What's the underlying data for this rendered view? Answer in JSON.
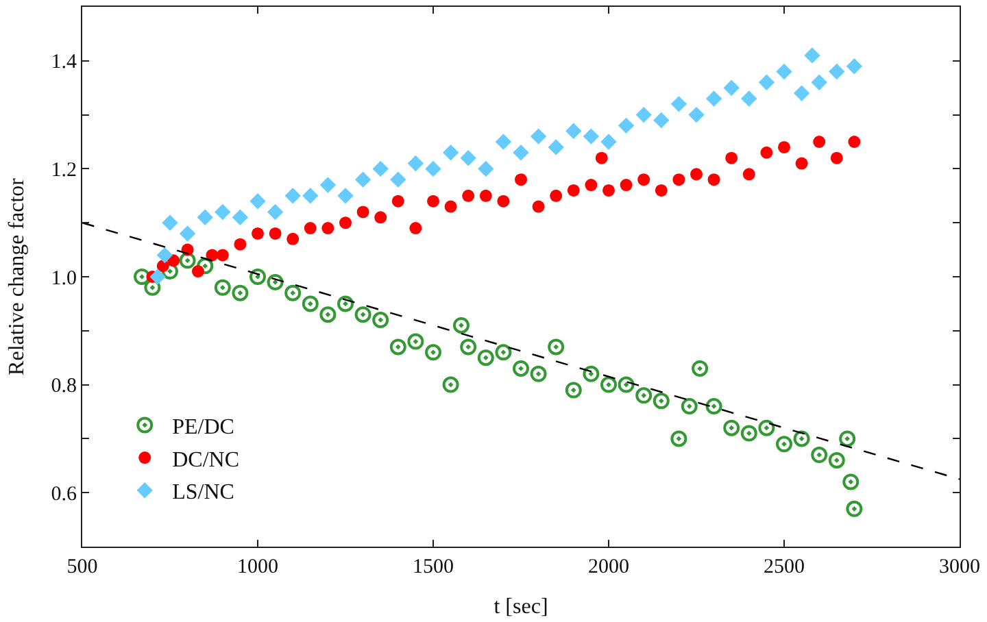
{
  "chart_data": {
    "type": "scatter",
    "xlabel": "t [sec]",
    "ylabel": "Relative change factor",
    "xlim": [
      500,
      3000
    ],
    "xticks": [
      500,
      1000,
      1500,
      2000,
      2500,
      3000
    ],
    "ylim": [
      0.5,
      1.5
    ],
    "yticks": [
      {
        "value": 0.5,
        "label": null
      },
      0.6,
      {
        "value": 0.7,
        "label": null
      },
      0.8,
      {
        "value": 0.9,
        "label": null
      },
      "1.0",
      {
        "value": 1.1,
        "label": null
      },
      1.2,
      {
        "value": 1.3,
        "label": null
      },
      1.4,
      {
        "value": 1.5,
        "label": null
      }
    ],
    "legend": "bottom left",
    "series": [
      {
        "name": "PE/DC",
        "color": "#339933",
        "marker": "circle",
        "x": [
          670,
          700,
          750,
          800,
          850,
          900,
          950,
          1000,
          1050,
          1100,
          1150,
          1200,
          1250,
          1300,
          1350,
          1400,
          1450,
          1500,
          1550,
          1580,
          1600,
          1650,
          1700,
          1750,
          1800,
          1850,
          1900,
          1950,
          2000,
          2050,
          2100,
          2150,
          2200,
          2230,
          2260,
          2300,
          2350,
          2400,
          2450,
          2500,
          2550,
          2600,
          2650,
          2680,
          2690,
          2700
        ],
        "values": [
          1.0,
          0.98,
          1.01,
          1.03,
          1.02,
          0.98,
          0.97,
          1.0,
          0.99,
          0.97,
          0.95,
          0.93,
          0.95,
          0.93,
          0.92,
          0.87,
          0.88,
          0.86,
          0.8,
          0.91,
          0.87,
          0.85,
          0.86,
          0.83,
          0.82,
          0.87,
          0.79,
          0.82,
          0.8,
          0.8,
          0.78,
          0.77,
          0.7,
          0.76,
          0.83,
          0.76,
          0.72,
          0.71,
          0.72,
          0.69,
          0.7,
          0.67,
          0.66,
          0.7,
          0.62,
          0.57
        ]
      },
      {
        "name": "DC/NC",
        "color": "#ff0000",
        "marker": "circle",
        "x": [
          700,
          730,
          760,
          800,
          830,
          870,
          900,
          950,
          1000,
          1050,
          1100,
          1150,
          1200,
          1250,
          1300,
          1350,
          1400,
          1450,
          1500,
          1550,
          1600,
          1650,
          1700,
          1750,
          1800,
          1850,
          1900,
          1950,
          1980,
          2000,
          2050,
          2100,
          2150,
          2200,
          2250,
          2300,
          2350,
          2400,
          2450,
          2500,
          2550,
          2600,
          2650,
          2700
        ],
        "values": [
          1.0,
          1.02,
          1.03,
          1.05,
          1.01,
          1.04,
          1.04,
          1.06,
          1.08,
          1.08,
          1.07,
          1.09,
          1.09,
          1.1,
          1.12,
          1.11,
          1.14,
          1.09,
          1.14,
          1.13,
          1.15,
          1.15,
          1.14,
          1.18,
          1.13,
          1.15,
          1.16,
          1.17,
          1.22,
          1.16,
          1.17,
          1.18,
          1.16,
          1.18,
          1.19,
          1.18,
          1.22,
          1.19,
          1.23,
          1.24,
          1.21,
          1.25,
          1.22,
          1.25
        ]
      },
      {
        "name": "LS/NC",
        "color": "#66ccff",
        "marker": "diamond",
        "x": [
          715,
          735,
          750,
          800,
          850,
          900,
          950,
          1000,
          1050,
          1100,
          1150,
          1200,
          1250,
          1300,
          1350,
          1400,
          1450,
          1500,
          1550,
          1600,
          1650,
          1700,
          1750,
          1800,
          1850,
          1900,
          1950,
          2000,
          2050,
          2100,
          2150,
          2200,
          2250,
          2300,
          2350,
          2400,
          2450,
          2500,
          2550,
          2580,
          2600,
          2650,
          2700
        ],
        "values": [
          1.0,
          1.04,
          1.1,
          1.08,
          1.11,
          1.12,
          1.11,
          1.14,
          1.12,
          1.15,
          1.15,
          1.17,
          1.15,
          1.18,
          1.2,
          1.18,
          1.21,
          1.2,
          1.23,
          1.22,
          1.2,
          1.25,
          1.23,
          1.26,
          1.24,
          1.27,
          1.26,
          1.25,
          1.28,
          1.3,
          1.29,
          1.32,
          1.3,
          1.33,
          1.35,
          1.33,
          1.36,
          1.38,
          1.34,
          1.41,
          1.36,
          1.38,
          1.39
        ]
      },
      {
        "type": "line",
        "color": "#000000",
        "line_style": "dashed",
        "marker": "none",
        "x": [
          500,
          3000
        ],
        "values": [
          1.1,
          0.625
        ]
      }
    ]
  }
}
